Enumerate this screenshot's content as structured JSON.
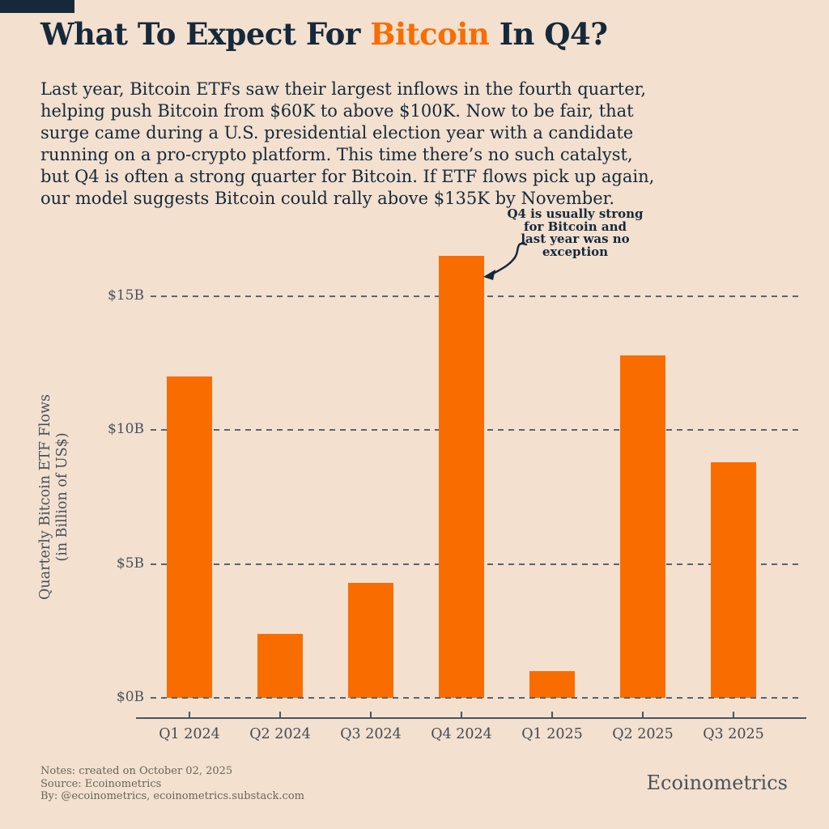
{
  "page": {
    "colors": {
      "background": "#F3E0CF",
      "accent_orange": "#F96D00",
      "navy": "#15293B",
      "axis_gray": "#4A555F"
    }
  },
  "header": {
    "title_prefix": "What To Expect For ",
    "title_highlight": "Bitcoin",
    "title_suffix": " In Q4?"
  },
  "intro": {
    "lines": [
      "Last year, Bitcoin ETFs saw their largest inflows in the fourth quarter,",
      "helping push Bitcoin from $60K to above $100K. Now to be fair, that",
      "surge came during a U.S. presidential election year with a candidate",
      "running on a pro-crypto platform. This time there’s no such catalyst,",
      "but Q4 is often a strong quarter for Bitcoin. If ETF flows pick up again,",
      "our model suggests Bitcoin could rally above $135K by November."
    ]
  },
  "chart_data": {
    "type": "bar",
    "categories": [
      "Q1 2024",
      "Q2 2024",
      "Q3 2024",
      "Q4 2024",
      "Q1 2025",
      "Q2 2025",
      "Q3 2025"
    ],
    "values": [
      12.0,
      2.4,
      4.3,
      16.5,
      1.0,
      12.8,
      8.8
    ],
    "bar_color": "#F96D00",
    "ylabel_line1": "Quarterly Bitcoin ETF Flows",
    "ylabel_line2": "(in Billion of US$)",
    "yticks": [
      {
        "label": "$15B",
        "value": 15
      },
      {
        "label": "$10B",
        "value": 10
      },
      {
        "label": "$5B",
        "value": 5
      },
      {
        "label": "$0B",
        "value": 0
      }
    ],
    "ylim": [
      0,
      17
    ],
    "grid": "horizontal-dashed",
    "annotation": {
      "lines": [
        "Q4 is usually strong",
        "for Bitcoin and",
        "last year was no",
        "exception"
      ],
      "points_to": "Q4 2024"
    }
  },
  "footer": {
    "notes": [
      "Notes: created on October 02, 2025",
      "Source: Ecoinometrics",
      "By: @ecoinometrics, ecoinometrics.substack.com"
    ],
    "brand": "Ecoinometrics"
  }
}
